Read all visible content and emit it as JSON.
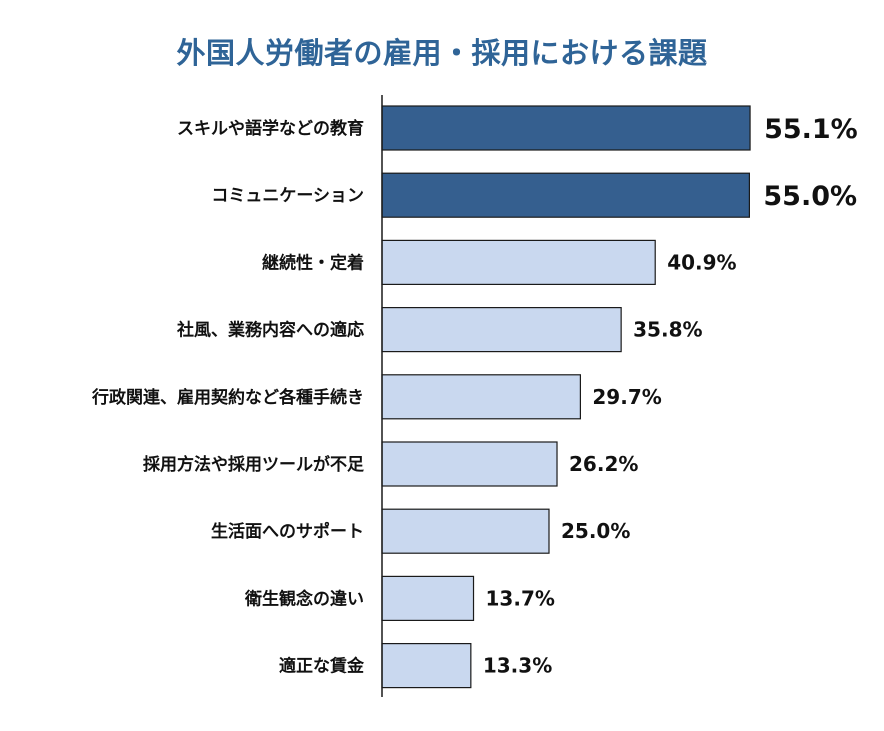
{
  "chart_data": {
    "type": "bar",
    "orientation": "horizontal",
    "title": "外国人労働者の雇用・採用における課題",
    "categories": [
      "スキルや語学などの教育",
      "コミュニケーション",
      "継続性・定着",
      "社風、業務内容への適応",
      "行政関連、雇用契約など各種手続き",
      "採用方法や採用ツールが不足",
      "生活面へのサポート",
      "衛生観念の違い",
      "適正な賃金"
    ],
    "values": [
      55.1,
      55.0,
      40.9,
      35.8,
      29.7,
      26.2,
      25.0,
      13.7,
      13.3
    ],
    "value_labels": [
      "55.1%",
      "55.0%",
      "40.9%",
      "35.8%",
      "29.7%",
      "26.2%",
      "25.0%",
      "13.7%",
      "13.3%"
    ],
    "xlim": [
      0,
      60
    ],
    "grid": false,
    "legend": "none",
    "colors": {
      "highlight": "#355f8f",
      "normal": "#c9d8ef",
      "title": "#2f6497"
    },
    "highlight_count": 2
  }
}
